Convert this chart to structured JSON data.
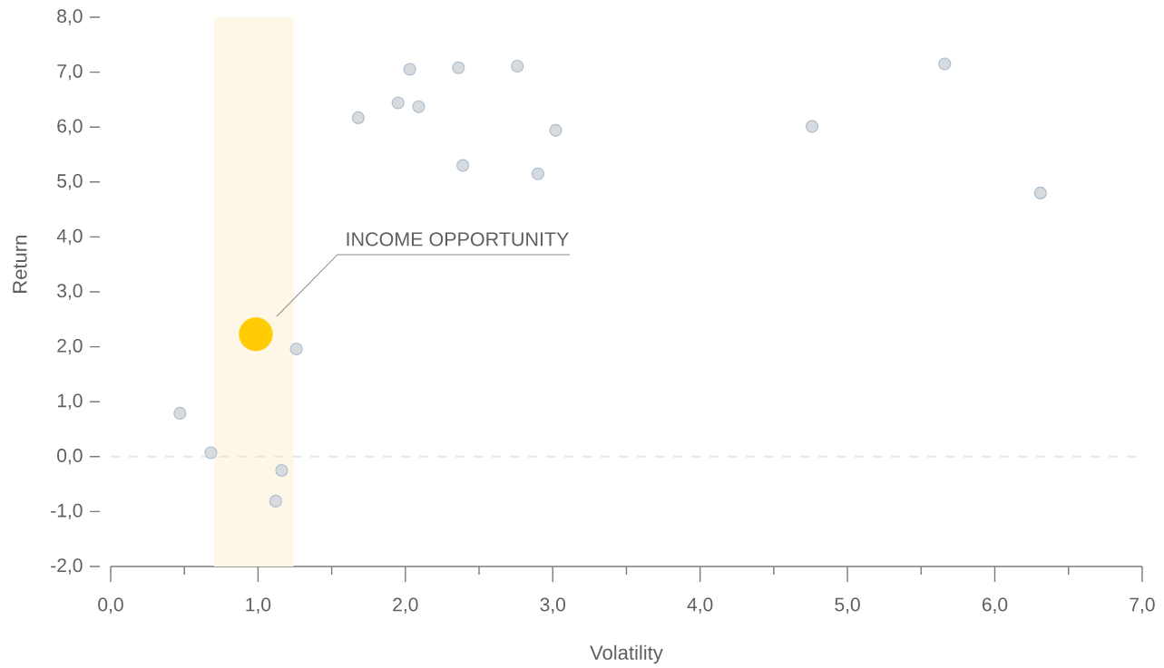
{
  "chart_data": {
    "type": "scatter",
    "xlabel": "Volatility",
    "ylabel": "Return",
    "marker": "circle",
    "series": [
      {
        "color": "#d8dbde",
        "x": [
          0.47,
          0.68,
          1.12,
          1.16,
          1.26,
          1.68,
          1.95,
          2.03,
          2.09,
          2.36,
          2.39,
          2.76,
          2.9,
          3.02,
          4.76,
          5.66,
          6.31
        ],
        "values": [
          0.79,
          0.07,
          -0.81,
          -0.25,
          1.96,
          6.17,
          6.44,
          7.05,
          6.37,
          7.08,
          5.3,
          7.11,
          5.15,
          5.94,
          6.01,
          7.15,
          4.8
        ]
      },
      {
        "color": "#ffcc05",
        "x": [
          0.985
        ],
        "values": [
          2.23
        ]
      }
    ],
    "xlim": [
      0,
      7
    ],
    "ylim": [
      -2,
      8
    ],
    "xticks": [
      {
        "value": 0,
        "label": "0,0"
      },
      {
        "value": 0.5,
        "label": null
      },
      {
        "value": 1,
        "label": "1,0"
      },
      {
        "value": 1.5,
        "label": null
      },
      {
        "value": 2,
        "label": "2,0"
      },
      {
        "value": 2.5,
        "label": null
      },
      {
        "value": 3,
        "label": "3,0"
      },
      {
        "value": 3.5,
        "label": null
      },
      {
        "value": 4,
        "label": "4,0"
      },
      {
        "value": 4.5,
        "label": null
      },
      {
        "value": 5,
        "label": "5,0"
      },
      {
        "value": 5.5,
        "label": null
      },
      {
        "value": 6,
        "label": "6,0"
      },
      {
        "value": 6.5,
        "label": null
      },
      {
        "value": 7,
        "label": "7,0"
      }
    ],
    "yticks": [
      {
        "value": -2,
        "label": "-2,0"
      },
      {
        "value": -1,
        "label": "-1,0"
      },
      {
        "value": 0,
        "label": "0,0"
      },
      {
        "value": 1,
        "label": "1,0"
      },
      {
        "value": 2,
        "label": "2,0"
      },
      {
        "value": 3,
        "label": "3,0"
      },
      {
        "value": 4,
        "label": "4,0"
      },
      {
        "value": 5,
        "label": "5,0"
      },
      {
        "value": 6,
        "label": "6,0"
      },
      {
        "value": 7,
        "label": "7,0"
      },
      {
        "value": 8,
        "label": "8,0"
      }
    ],
    "ref_lines": [
      {
        "axis": "y",
        "value": 0,
        "color": "#e6e6e6",
        "line_style": "dashed"
      }
    ],
    "bands": [
      {
        "axis": "x",
        "from": 0.7,
        "to": 1.24,
        "color": "#fef7e7"
      }
    ],
    "annotations": [
      "INCOME OPPORTUNITY"
    ]
  }
}
